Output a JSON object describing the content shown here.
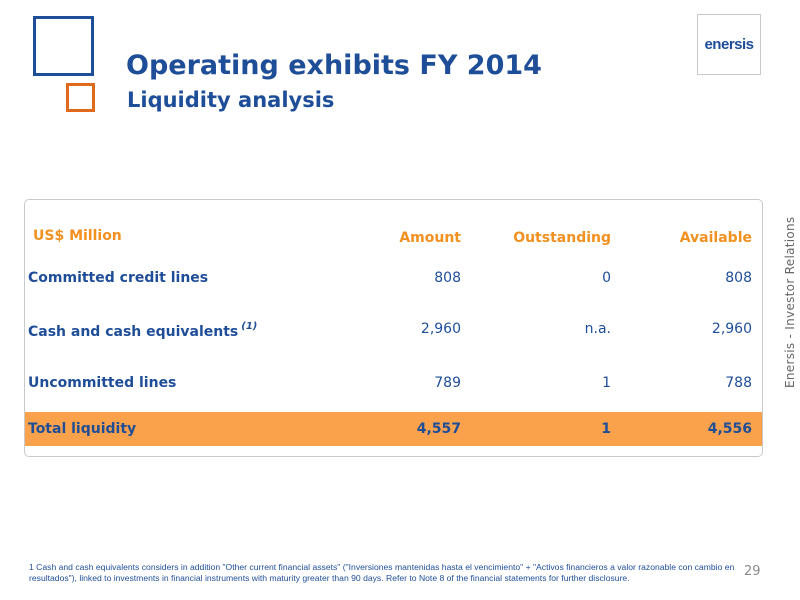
{
  "header": {
    "title": "Operating exhibits FY 2014",
    "subtitle": "Liquidity analysis",
    "logo_text": "enersis"
  },
  "side_label": "Enersis - Investor Relations",
  "table": {
    "unit_label": "US$ Million",
    "columns": [
      "Amount",
      "Outstanding",
      "Available"
    ],
    "rows": [
      {
        "label": "Committed credit lines",
        "footnote_ref": "",
        "amount": "808",
        "outstanding": "0",
        "available": "808"
      },
      {
        "label": "Cash and cash equivalents",
        "footnote_ref": "(1)",
        "amount": "2,960",
        "outstanding": "n.a.",
        "available": "2,960"
      },
      {
        "label": "Uncommitted lines",
        "footnote_ref": "",
        "amount": "789",
        "outstanding": "1",
        "available": "788"
      }
    ],
    "total": {
      "label": "Total liquidity",
      "amount": "4,557",
      "outstanding": "1",
      "available": "4,556"
    }
  },
  "footnote": "1  Cash and cash equivalents considers in addition  \"Other current financial assets\" (\"Inversiones mantenidas hasta el vencimiento\" + \"Activos financieros a valor razonable con cambio en resultados\"), linked to investments in financial instruments with maturity greater than 90 days. Refer to Note 8 of the financial statements for further disclosure.",
  "page_number": "29",
  "colors": {
    "brand_blue": "#1f4e99",
    "accent_orange": "#f29020",
    "total_row_fill": "#f9a24b",
    "small_square": "#e06a1b"
  }
}
